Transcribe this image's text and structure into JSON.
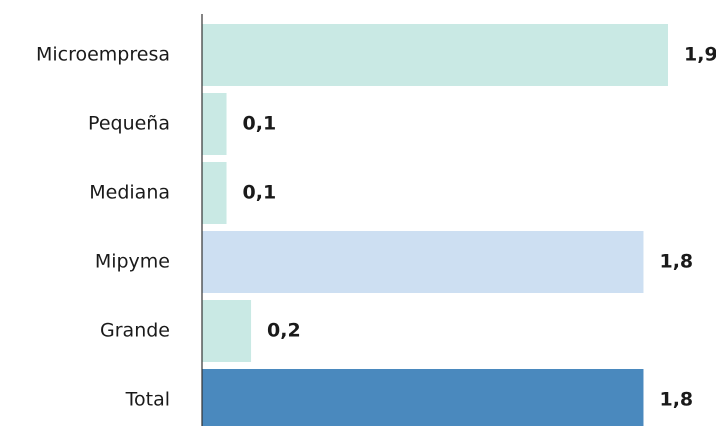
{
  "chart_data": {
    "type": "hbar",
    "categories": [
      "Microempresa",
      "Pequeña",
      "Mediana",
      "Mipyme",
      "Grande",
      "Total"
    ],
    "values": [
      1.9,
      0.1,
      0.1,
      1.8,
      0.2,
      1.8
    ],
    "value_labels": [
      "1,9",
      "0,1",
      "0,1",
      "1,8",
      "0,2",
      "1,8"
    ],
    "colors": [
      "#c9e9e4",
      "#c9e9e4",
      "#c9e9e4",
      "#cddff2",
      "#c9e9e4",
      "#4a89be"
    ]
  }
}
